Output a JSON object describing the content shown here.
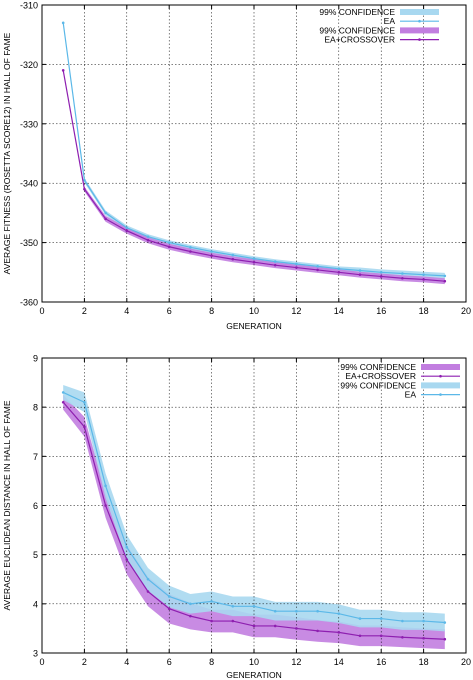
{
  "chart_data": [
    {
      "type": "line",
      "xlabel": "GENERATION",
      "ylabel": "AVERAGE FITNESS (ROSETTA SCORE12) IN HALL OF FAME",
      "xlim": [
        0,
        20
      ],
      "ylim": [
        -360,
        -310
      ],
      "xticks": [
        0,
        2,
        4,
        6,
        8,
        10,
        12,
        14,
        16,
        18,
        20
      ],
      "yticks": [
        -360,
        -350,
        -340,
        -330,
        -320,
        -310
      ],
      "grid": true,
      "legend_position": "top-right",
      "legend": [
        "99% CONFIDENCE",
        "EA",
        "99% CONFIDENCE",
        "EA+CROSSOVER"
      ],
      "x": [
        1,
        2,
        3,
        4,
        5,
        6,
        7,
        8,
        9,
        10,
        11,
        12,
        13,
        14,
        15,
        16,
        17,
        18,
        19
      ],
      "series": [
        {
          "name": "EA",
          "color": "#5bb8e8",
          "band_color": "#a8d8f0",
          "values": [
            -313,
            -339.5,
            -345,
            -347.5,
            -349,
            -350,
            -350.8,
            -351.5,
            -352.1,
            -352.7,
            -353.2,
            -353.6,
            -354,
            -354.4,
            -354.7,
            -355,
            -355.2,
            -355.4,
            -355.6
          ],
          "lower": [
            -313,
            -339.9,
            -345.4,
            -347.9,
            -349.4,
            -350.4,
            -351.2,
            -351.9,
            -352.5,
            -353.1,
            -353.6,
            -354,
            -354.4,
            -354.8,
            -355.2,
            -355.5,
            -355.7,
            -355.9,
            -356.1
          ],
          "upper": [
            -313,
            -339.1,
            -344.6,
            -347.1,
            -348.6,
            -349.6,
            -350.4,
            -351.1,
            -351.7,
            -352.3,
            -352.8,
            -353.2,
            -353.6,
            -354,
            -354.2,
            -354.5,
            -354.7,
            -354.9,
            -355.1
          ]
        },
        {
          "name": "EA+CROSSOVER",
          "color": "#8e1fb0",
          "band_color": "#c27ee0",
          "values": [
            -321,
            -341,
            -346,
            -348,
            -349.6,
            -350.7,
            -351.5,
            -352.2,
            -352.8,
            -353.3,
            -353.8,
            -354.2,
            -354.6,
            -355,
            -355.4,
            -355.7,
            -356,
            -356.2,
            -356.5
          ],
          "lower": [
            -321,
            -341.4,
            -346.5,
            -348.5,
            -350.1,
            -351.2,
            -352,
            -352.7,
            -353.3,
            -353.8,
            -354.3,
            -354.7,
            -355.1,
            -355.5,
            -355.9,
            -356.2,
            -356.5,
            -356.7,
            -357
          ],
          "upper": [
            -321,
            -340.6,
            -345.5,
            -347.5,
            -349.1,
            -350.2,
            -351,
            -351.7,
            -352.3,
            -352.8,
            -353.3,
            -353.7,
            -354.1,
            -354.5,
            -354.9,
            -355.2,
            -355.5,
            -355.7,
            -356
          ]
        }
      ]
    },
    {
      "type": "line",
      "xlabel": "GENERATION",
      "ylabel": "AVERAGE EUCLIDEAN DISTANCE IN HALL OF FAME",
      "xlim": [
        0,
        20
      ],
      "ylim": [
        3,
        9
      ],
      "xticks": [
        0,
        2,
        4,
        6,
        8,
        10,
        12,
        14,
        16,
        18,
        20
      ],
      "yticks": [
        3,
        4,
        5,
        6,
        7,
        8,
        9
      ],
      "grid": true,
      "legend_position": "top-right",
      "legend": [
        "99% CONFIDENCE",
        "EA+CROSSOVER",
        "99% CONFIDENCE",
        "EA"
      ],
      "x": [
        1,
        2,
        3,
        4,
        5,
        6,
        7,
        8,
        9,
        10,
        11,
        12,
        13,
        14,
        15,
        16,
        17,
        18,
        19
      ],
      "series": [
        {
          "name": "EA+CROSSOVER",
          "color": "#8e1fb0",
          "band_color": "#c27ee0",
          "values": [
            8.1,
            7.6,
            6.0,
            4.9,
            4.25,
            3.9,
            3.75,
            3.65,
            3.65,
            3.55,
            3.55,
            3.5,
            3.45,
            3.42,
            3.35,
            3.35,
            3.32,
            3.3,
            3.28
          ],
          "lower": [
            7.95,
            7.4,
            5.75,
            4.6,
            3.95,
            3.6,
            3.48,
            3.42,
            3.42,
            3.32,
            3.32,
            3.27,
            3.23,
            3.2,
            3.14,
            3.14,
            3.12,
            3.1,
            3.08
          ],
          "upper": [
            8.25,
            7.8,
            6.25,
            5.2,
            4.55,
            4.2,
            4.02,
            3.88,
            3.88,
            3.78,
            3.78,
            3.73,
            3.67,
            3.64,
            3.56,
            3.56,
            3.52,
            3.5,
            3.48
          ]
        },
        {
          "name": "EA",
          "color": "#5bb8e8",
          "band_color": "#a8d8f0",
          "values": [
            8.3,
            8.1,
            6.4,
            5.15,
            4.5,
            4.15,
            4.0,
            4.05,
            3.95,
            3.95,
            3.85,
            3.85,
            3.85,
            3.8,
            3.7,
            3.7,
            3.65,
            3.65,
            3.62
          ],
          "lower": [
            8.15,
            7.9,
            6.15,
            4.9,
            4.27,
            3.93,
            3.8,
            3.85,
            3.75,
            3.75,
            3.66,
            3.66,
            3.66,
            3.61,
            3.52,
            3.52,
            3.47,
            3.47,
            3.44
          ],
          "upper": [
            8.45,
            8.3,
            6.65,
            5.4,
            4.73,
            4.37,
            4.2,
            4.25,
            4.15,
            4.15,
            4.04,
            4.04,
            4.04,
            3.99,
            3.88,
            3.88,
            3.83,
            3.83,
            3.8
          ]
        }
      ]
    }
  ]
}
